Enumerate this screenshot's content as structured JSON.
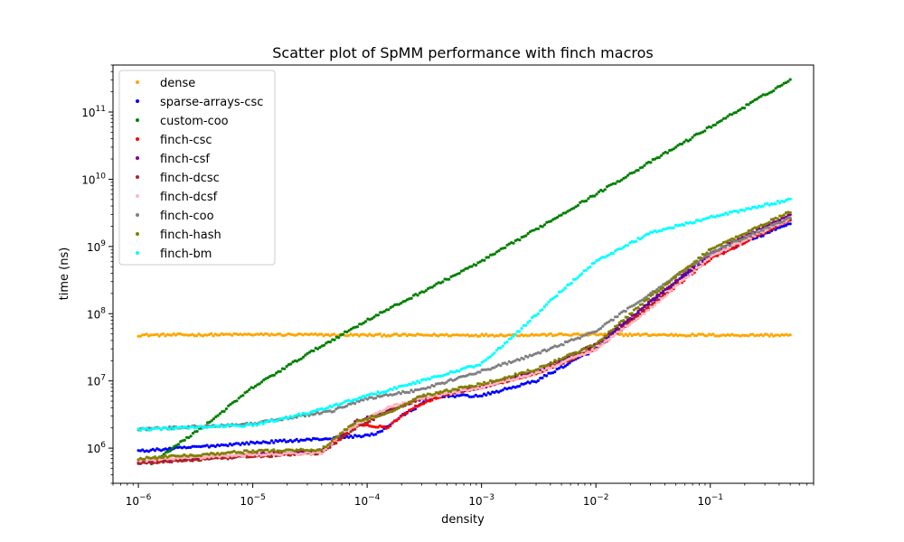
{
  "chart_data": {
    "type": "scatter",
    "title": "Scatter plot of SpMM performance with finch macros",
    "xlabel": "density",
    "ylabel": "time (ns)",
    "xscale": "log",
    "yscale": "log",
    "xlim": [
      6e-07,
      0.8
    ],
    "ylim": [
      300000.0,
      500000000000.0
    ],
    "grid": false,
    "legend_position": "top-left",
    "x_tick_labels": [
      {
        "base": "10",
        "exp": "−6",
        "value": 1e-06
      },
      {
        "base": "10",
        "exp": "−5",
        "value": 1e-05
      },
      {
        "base": "10",
        "exp": "−4",
        "value": 0.0001
      },
      {
        "base": "10",
        "exp": "−3",
        "value": 0.001
      },
      {
        "base": "10",
        "exp": "−2",
        "value": 0.01
      },
      {
        "base": "10",
        "exp": "−1",
        "value": 0.1
      }
    ],
    "y_tick_labels": [
      {
        "base": "10",
        "exp": "6",
        "value": 1000000.0
      },
      {
        "base": "10",
        "exp": "7",
        "value": 10000000.0
      },
      {
        "base": "10",
        "exp": "8",
        "value": 100000000.0
      },
      {
        "base": "10",
        "exp": "9",
        "value": 1000000000.0
      },
      {
        "base": "10",
        "exp": "10",
        "value": 10000000000.0
      },
      {
        "base": "10",
        "exp": "11",
        "value": 100000000000.0
      }
    ],
    "series": [
      {
        "name": "dense",
        "color": "#ffa500",
        "points": [
          [
            1e-06,
            48000000.0
          ],
          [
            1e-05,
            49000000.0
          ],
          [
            0.0001,
            48000000.0
          ],
          [
            0.001,
            48000000.0
          ],
          [
            0.01,
            49000000.0
          ],
          [
            0.1,
            48000000.0
          ],
          [
            0.5,
            48000000.0
          ]
        ]
      },
      {
        "name": "sparse-arrays-csc",
        "color": "#0000ff",
        "points": [
          [
            1e-06,
            900000.0
          ],
          [
            1e-05,
            1200000.0
          ],
          [
            5e-05,
            1400000.0
          ],
          [
            0.00012,
            1600000.0
          ],
          [
            0.0002,
            3000000.0
          ],
          [
            0.0004,
            6000000.0
          ],
          [
            0.001,
            6000000.0
          ],
          [
            0.003,
            10000000.0
          ],
          [
            0.01,
            30000000.0
          ],
          [
            0.03,
            150000000.0
          ],
          [
            0.1,
            700000000.0
          ],
          [
            0.5,
            2200000000.0
          ]
        ]
      },
      {
        "name": "custom-coo",
        "color": "#008000",
        "points": [
          [
            1.3e-06,
            600000.0
          ],
          [
            4e-06,
            2300000.0
          ],
          [
            1e-05,
            8000000.0
          ],
          [
            3e-05,
            25000000.0
          ],
          [
            0.0001,
            80000000.0
          ],
          [
            0.001,
            600000000.0
          ],
          [
            0.01,
            6000000000.0
          ],
          [
            0.1,
            60000000000.0
          ],
          [
            0.5,
            300000000000.0
          ]
        ]
      },
      {
        "name": "finch-csc",
        "color": "#ff0000",
        "points": [
          [
            1e-06,
            650000.0
          ],
          [
            1e-05,
            800000.0
          ],
          [
            4e-05,
            900000.0
          ],
          [
            8e-05,
            2300000.0
          ],
          [
            0.00015,
            2000000.0
          ],
          [
            0.00025,
            4000000.0
          ],
          [
            0.0005,
            6500000.0
          ],
          [
            0.001,
            8000000.0
          ],
          [
            0.003,
            13000000.0
          ],
          [
            0.01,
            30000000.0
          ],
          [
            0.03,
            130000000.0
          ],
          [
            0.1,
            650000000.0
          ],
          [
            0.5,
            2500000000.0
          ]
        ]
      },
      {
        "name": "finch-csf",
        "color": "#800080",
        "points": [
          [
            1e-06,
            600000.0
          ],
          [
            1e-05,
            800000.0
          ],
          [
            4e-05,
            900000.0
          ],
          [
            8e-05,
            2500000.0
          ],
          [
            0.00015,
            3500000.0
          ],
          [
            0.0003,
            5500000.0
          ],
          [
            0.001,
            8000000.0
          ],
          [
            0.003,
            14000000.0
          ],
          [
            0.01,
            35000000.0
          ],
          [
            0.03,
            150000000.0
          ],
          [
            0.1,
            800000000.0
          ],
          [
            0.5,
            3000000000.0
          ]
        ]
      },
      {
        "name": "finch-dcsc",
        "color": "#b22222",
        "points": [
          [
            1e-06,
            600000.0
          ],
          [
            1e-05,
            750000.0
          ],
          [
            4e-05,
            850000.0
          ],
          [
            8e-05,
            2000000.0
          ],
          [
            0.00015,
            3500000.0
          ],
          [
            0.0003,
            5500000.0
          ],
          [
            0.001,
            8000000.0
          ],
          [
            0.003,
            13000000.0
          ],
          [
            0.01,
            30000000.0
          ],
          [
            0.03,
            130000000.0
          ],
          [
            0.1,
            700000000.0
          ],
          [
            0.5,
            2600000000.0
          ]
        ]
      },
      {
        "name": "finch-dcsf",
        "color": "#ffb6c1",
        "points": [
          [
            1e-06,
            650000.0
          ],
          [
            1e-05,
            800000.0
          ],
          [
            4e-05,
            850000.0
          ],
          [
            6e-05,
            1700000.0
          ],
          [
            0.00015,
            4000000.0
          ],
          [
            0.0003,
            5500000.0
          ],
          [
            0.001,
            8000000.0
          ],
          [
            0.003,
            13000000.0
          ],
          [
            0.01,
            30000000.0
          ],
          [
            0.03,
            120000000.0
          ],
          [
            0.1,
            700000000.0
          ],
          [
            0.5,
            2600000000.0
          ]
        ]
      },
      {
        "name": "finch-coo",
        "color": "#808080",
        "points": [
          [
            1e-06,
            1900000.0
          ],
          [
            1e-05,
            2300000.0
          ],
          [
            5e-05,
            3600000.0
          ],
          [
            0.0001,
            5500000.0
          ],
          [
            0.0003,
            7500000.0
          ],
          [
            0.001,
            14000000.0
          ],
          [
            0.003,
            25000000.0
          ],
          [
            0.01,
            55000000.0
          ],
          [
            0.03,
            200000000.0
          ],
          [
            0.1,
            800000000.0
          ],
          [
            0.5,
            2700000000.0
          ]
        ]
      },
      {
        "name": "finch-hash",
        "color": "#808000",
        "points": [
          [
            1e-06,
            700000.0
          ],
          [
            1e-05,
            900000.0
          ],
          [
            4e-05,
            950000.0
          ],
          [
            8e-05,
            2500000.0
          ],
          [
            0.00015,
            3300000.0
          ],
          [
            0.0003,
            6000000.0
          ],
          [
            0.001,
            9000000.0
          ],
          [
            0.003,
            15000000.0
          ],
          [
            0.01,
            35000000.0
          ],
          [
            0.03,
            180000000.0
          ],
          [
            0.1,
            900000000.0
          ],
          [
            0.5,
            3300000000.0
          ]
        ]
      },
      {
        "name": "finch-bm",
        "color": "#00ffff",
        "points": [
          [
            1e-06,
            1900000.0
          ],
          [
            5e-06,
            2100000.0
          ],
          [
            1e-05,
            2200000.0
          ],
          [
            3e-05,
            3300000.0
          ],
          [
            0.0001,
            6000000.0
          ],
          [
            0.0003,
            10000000.0
          ],
          [
            0.001,
            18000000.0
          ],
          [
            0.002,
            50000000.0
          ],
          [
            0.005,
            220000000.0
          ],
          [
            0.01,
            600000000.0
          ],
          [
            0.03,
            1600000000.0
          ],
          [
            0.1,
            2700000000.0
          ],
          [
            0.5,
            5000000000.0
          ]
        ]
      }
    ]
  }
}
